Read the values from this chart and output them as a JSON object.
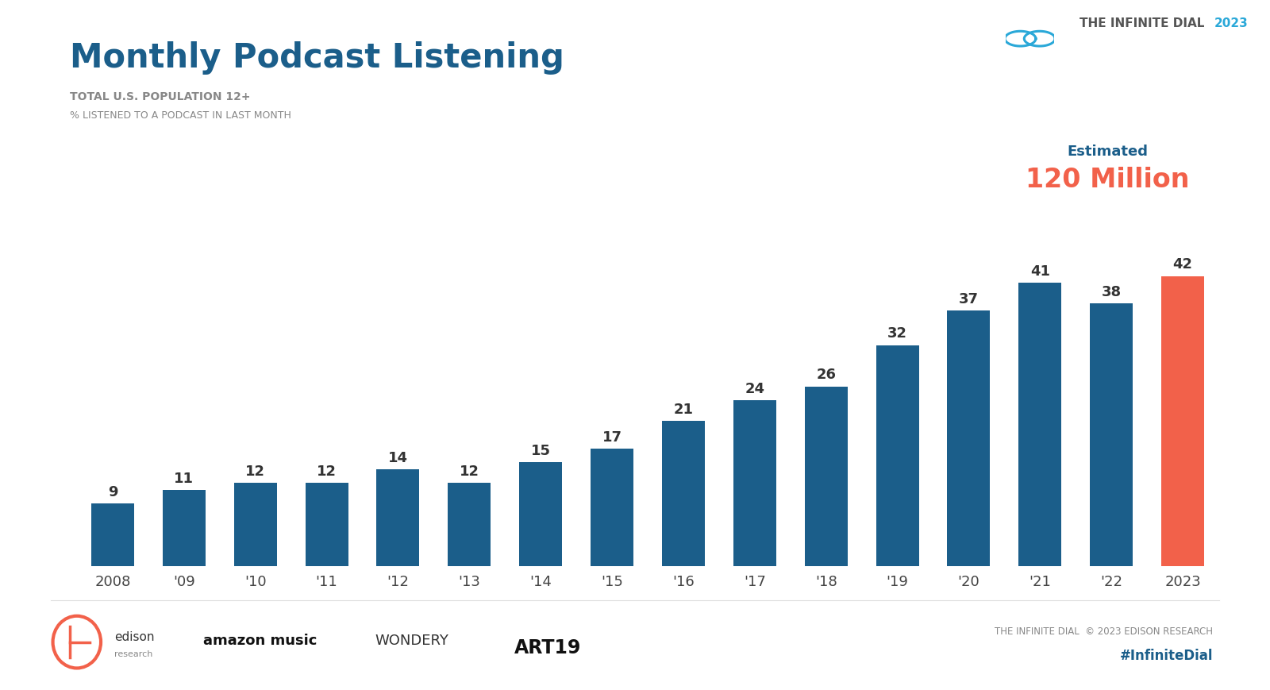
{
  "title": "Monthly Podcast Listening",
  "subtitle1": "TOTAL U.S. POPULATION 12+",
  "subtitle2": "% LISTENED TO A PODCAST IN LAST MONTH",
  "years": [
    "2008",
    "'09",
    "'10",
    "'11",
    "'12",
    "'13",
    "'14",
    "'15",
    "'16",
    "'17",
    "'18",
    "'19",
    "'20",
    "'21",
    "'22",
    "2023"
  ],
  "values": [
    9,
    11,
    12,
    12,
    14,
    12,
    15,
    17,
    21,
    24,
    26,
    32,
    37,
    41,
    38,
    42
  ],
  "bar_colors": [
    "#1B5E8A",
    "#1B5E8A",
    "#1B5E8A",
    "#1B5E8A",
    "#1B5E8A",
    "#1B5E8A",
    "#1B5E8A",
    "#1B5E8A",
    "#1B5E8A",
    "#1B5E8A",
    "#1B5E8A",
    "#1B5E8A",
    "#1B5E8A",
    "#1B5E8A",
    "#1B5E8A",
    "#F2614A"
  ],
  "estimated_label": "Estimated",
  "estimated_value": "120 Million",
  "estimated_color": "#F2614A",
  "estimated_label_color": "#1B5E8A",
  "background_color": "#FFFFFF",
  "title_color": "#1B5E8A",
  "subtitle1_color": "#888888",
  "subtitle2_color": "#888888",
  "footer_right1": "THE INFINITE DIAL  © 2023 EDISON RESEARCH",
  "footer_right2": "#InfiniteDial",
  "infinite_dial_text": "THE INFINITE DIAL",
  "infinite_dial_year": "2023",
  "value_label_color": "#333333",
  "xlim": [
    -0.6,
    15.6
  ],
  "ylim": [
    0,
    50
  ]
}
